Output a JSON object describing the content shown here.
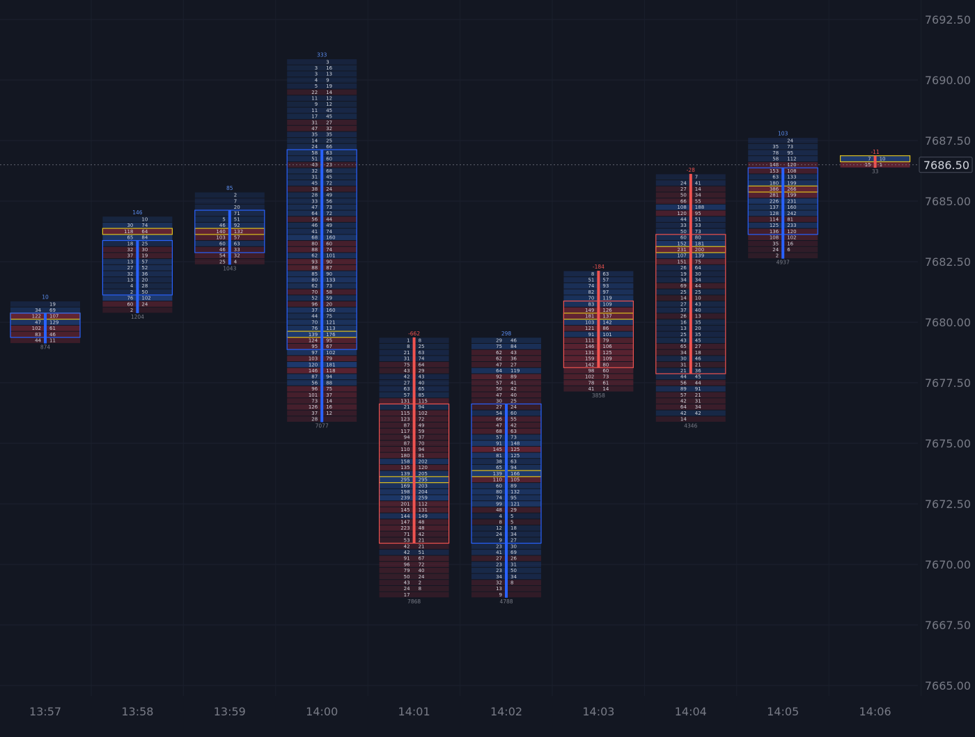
{
  "chart_data": {
    "type": "footprint",
    "price_axis": {
      "min": 7664.5,
      "max": 7693.5,
      "tick_step": 2.5,
      "ticks": [
        "7692.50",
        "7690.00",
        "7687.50",
        "7685.00",
        "7682.50",
        "7680.00",
        "7677.50",
        "7675.00",
        "7672.50",
        "7670.00",
        "7667.50",
        "7665.00"
      ],
      "tick_size": 0.25
    },
    "time_axis": [
      "13:57",
      "13:58",
      "13:59",
      "14:00",
      "14:01",
      "14:02",
      "14:03",
      "14:04",
      "14:05",
      "14:06"
    ],
    "last_price": "7686.50",
    "colors": {
      "background": "#131722",
      "bid": "#ef5350",
      "ask": "#2962ff",
      "poc": "#e0c21e",
      "text": "#d1d4dc",
      "axis": "#787b86",
      "last_price_line": "#787b86"
    },
    "candles": [
      {
        "time": "13:57",
        "top": 7680.75,
        "delta": "10",
        "delta_dir": "up",
        "volume": "874",
        "rows": [
          [
            "",
            "19"
          ],
          [
            "34",
            "69"
          ],
          [
            "122",
            "107"
          ],
          [
            "47",
            "129"
          ],
          [
            "102",
            "61"
          ],
          [
            "83",
            "46"
          ],
          [
            "44",
            "11"
          ]
        ]
      },
      {
        "time": "13:58",
        "top": 7684.25,
        "delta": "146",
        "delta_dir": "up",
        "volume": "1204",
        "rows": [
          [
            "",
            "10"
          ],
          [
            "30",
            "74"
          ],
          [
            "118",
            "64"
          ],
          [
            "65",
            "84"
          ],
          [
            "18",
            "25"
          ],
          [
            "32",
            "30"
          ],
          [
            "37",
            "19"
          ],
          [
            "13",
            "57"
          ],
          [
            "27",
            "52"
          ],
          [
            "32",
            "36"
          ],
          [
            "13",
            "20"
          ],
          [
            "4",
            "28"
          ],
          [
            "2",
            "50"
          ],
          [
            "76",
            "102"
          ],
          [
            "60",
            "24"
          ],
          [
            "2",
            ""
          ]
        ]
      },
      {
        "time": "13:59",
        "top": 7685.25,
        "delta": "85",
        "delta_dir": "up",
        "volume": "1043",
        "rows": [
          [
            "",
            "2"
          ],
          [
            "",
            "7"
          ],
          [
            "",
            "20"
          ],
          [
            "",
            "71"
          ],
          [
            "5",
            "51"
          ],
          [
            "46",
            "92"
          ],
          [
            "140",
            "132"
          ],
          [
            "103",
            "57"
          ],
          [
            "60",
            "63"
          ],
          [
            "46",
            "33"
          ],
          [
            "54",
            "32"
          ],
          [
            "25",
            "4"
          ]
        ]
      },
      {
        "time": "14:00",
        "top": 7690.75,
        "delta": "333",
        "delta_dir": "up",
        "volume": "7077",
        "rows": [
          [
            "",
            "3"
          ],
          [
            "3",
            "16"
          ],
          [
            "3",
            "13"
          ],
          [
            "4",
            "9"
          ],
          [
            "5",
            "19"
          ],
          [
            "22",
            "14"
          ],
          [
            "11",
            "12"
          ],
          [
            "9",
            "12"
          ],
          [
            "11",
            "45"
          ],
          [
            "17",
            "45"
          ],
          [
            "31",
            "27"
          ],
          [
            "47",
            "32"
          ],
          [
            "35",
            "35"
          ],
          [
            "14",
            "25"
          ],
          [
            "24",
            "66"
          ],
          [
            "58",
            "63"
          ],
          [
            "51",
            "60"
          ],
          [
            "43",
            "23"
          ],
          [
            "32",
            "68"
          ],
          [
            "31",
            "45"
          ],
          [
            "45",
            "72"
          ],
          [
            "38",
            "24"
          ],
          [
            "28",
            "49"
          ],
          [
            "33",
            "56"
          ],
          [
            "47",
            "73"
          ],
          [
            "64",
            "72"
          ],
          [
            "56",
            "44"
          ],
          [
            "46",
            "49"
          ],
          [
            "41",
            "74"
          ],
          [
            "68",
            "160"
          ],
          [
            "80",
            "60"
          ],
          [
            "88",
            "74"
          ],
          [
            "62",
            "101"
          ],
          [
            "93",
            "90"
          ],
          [
            "88",
            "87"
          ],
          [
            "85",
            "90"
          ],
          [
            "80",
            "133"
          ],
          [
            "62",
            "73"
          ],
          [
            "70",
            "58"
          ],
          [
            "52",
            "59"
          ],
          [
            "96",
            "20"
          ],
          [
            "37",
            "160"
          ],
          [
            "44",
            "75"
          ],
          [
            "70",
            "121"
          ],
          [
            "76",
            "113"
          ],
          [
            "139",
            "176"
          ],
          [
            "124",
            "95"
          ],
          [
            "95",
            "67"
          ],
          [
            "97",
            "102"
          ],
          [
            "103",
            "79"
          ],
          [
            "120",
            "181"
          ],
          [
            "146",
            "118"
          ],
          [
            "87",
            "94"
          ],
          [
            "56",
            "88"
          ],
          [
            "96",
            "75"
          ],
          [
            "101",
            "37"
          ],
          [
            "73",
            "14"
          ],
          [
            "126",
            "16"
          ],
          [
            "37",
            "12"
          ],
          [
            "28",
            ""
          ]
        ]
      },
      {
        "time": "14:01",
        "top": 7679.25,
        "delta": "-662",
        "delta_dir": "down",
        "volume": "7868",
        "rows": [
          [
            "1",
            "8"
          ],
          [
            "8",
            "25"
          ],
          [
            "21",
            "63"
          ],
          [
            "31",
            "74"
          ],
          [
            "75",
            "64"
          ],
          [
            "43",
            "29"
          ],
          [
            "42",
            "43"
          ],
          [
            "27",
            "40"
          ],
          [
            "63",
            "65"
          ],
          [
            "57",
            "85"
          ],
          [
            "131",
            "115"
          ],
          [
            "21",
            "94"
          ],
          [
            "115",
            "102"
          ],
          [
            "123",
            "72"
          ],
          [
            "87",
            "49"
          ],
          [
            "117",
            "59"
          ],
          [
            "94",
            "37"
          ],
          [
            "87",
            "70"
          ],
          [
            "110",
            "94"
          ],
          [
            "180",
            "81"
          ],
          [
            "158",
            "202"
          ],
          [
            "135",
            "120"
          ],
          [
            "139",
            "205"
          ],
          [
            "295",
            "295"
          ],
          [
            "169",
            "203"
          ],
          [
            "198",
            "204"
          ],
          [
            "239",
            "259"
          ],
          [
            "201",
            "112"
          ],
          [
            "145",
            "131"
          ],
          [
            "144",
            "149"
          ],
          [
            "147",
            "48"
          ],
          [
            "223",
            "48"
          ],
          [
            "71",
            "42"
          ],
          [
            "53",
            "21"
          ],
          [
            "42",
            "21"
          ],
          [
            "42",
            "51"
          ],
          [
            "91",
            "67"
          ],
          [
            "96",
            "72"
          ],
          [
            "79",
            "40"
          ],
          [
            "50",
            "24"
          ],
          [
            "43",
            "2"
          ],
          [
            "24",
            "8"
          ],
          [
            "17",
            ""
          ]
        ]
      },
      {
        "time": "14:02",
        "top": 7679.25,
        "delta": "298",
        "delta_dir": "up",
        "volume": "4788",
        "rows": [
          [
            "29",
            "46"
          ],
          [
            "75",
            "84"
          ],
          [
            "62",
            "43"
          ],
          [
            "62",
            "36"
          ],
          [
            "47",
            "27"
          ],
          [
            "64",
            "119"
          ],
          [
            "92",
            "89"
          ],
          [
            "57",
            "41"
          ],
          [
            "50",
            "42"
          ],
          [
            "47",
            "40"
          ],
          [
            "30",
            "25"
          ],
          [
            "27",
            "24"
          ],
          [
            "54",
            "60"
          ],
          [
            "66",
            "55"
          ],
          [
            "47",
            "42"
          ],
          [
            "68",
            "63"
          ],
          [
            "57",
            "73"
          ],
          [
            "91",
            "148"
          ],
          [
            "145",
            "125"
          ],
          [
            "81",
            "125"
          ],
          [
            "38",
            "63"
          ],
          [
            "65",
            "94"
          ],
          [
            "139",
            "166"
          ],
          [
            "110",
            "105"
          ],
          [
            "60",
            "89"
          ],
          [
            "80",
            "132"
          ],
          [
            "74",
            "95"
          ],
          [
            "99",
            "121"
          ],
          [
            "48",
            "29"
          ],
          [
            "4",
            "5"
          ],
          [
            "8",
            "5"
          ],
          [
            "12",
            "18"
          ],
          [
            "24",
            "34"
          ],
          [
            "9",
            "27"
          ],
          [
            "23",
            "30"
          ],
          [
            "41",
            "69"
          ],
          [
            "27",
            "26"
          ],
          [
            "23",
            "31"
          ],
          [
            "23",
            "50"
          ],
          [
            "34",
            "34"
          ],
          [
            "32",
            "8"
          ],
          [
            "13",
            ""
          ],
          [
            "9",
            ""
          ]
        ]
      },
      {
        "time": "14:03",
        "top": 7682.0,
        "delta": "-184",
        "delta_dir": "down",
        "volume": "3858",
        "rows": [
          [
            "8",
            "63"
          ],
          [
            "51",
            "57"
          ],
          [
            "74",
            "93"
          ],
          [
            "82",
            "97"
          ],
          [
            "70",
            "119"
          ],
          [
            "83",
            "109"
          ],
          [
            "149",
            "126"
          ],
          [
            "181",
            "137"
          ],
          [
            "103",
            "142"
          ],
          [
            "121",
            "86"
          ],
          [
            "91",
            "101"
          ],
          [
            "111",
            "79"
          ],
          [
            "146",
            "106"
          ],
          [
            "131",
            "125"
          ],
          [
            "159",
            "109"
          ],
          [
            "142",
            "80"
          ],
          [
            "98",
            "60"
          ],
          [
            "102",
            "73"
          ],
          [
            "78",
            "61"
          ],
          [
            "41",
            "14"
          ]
        ]
      },
      {
        "time": "14:04",
        "top": 7686.0,
        "delta": "-28",
        "delta_dir": "down",
        "volume": "4346",
        "rows": [
          [
            "",
            "7"
          ],
          [
            "24",
            "41"
          ],
          [
            "27",
            "14"
          ],
          [
            "50",
            "34"
          ],
          [
            "66",
            "55"
          ],
          [
            "108",
            "188"
          ],
          [
            "120",
            "95"
          ],
          [
            "44",
            "51"
          ],
          [
            "33",
            "33"
          ],
          [
            "50",
            "73"
          ],
          [
            "60",
            "80"
          ],
          [
            "152",
            "181"
          ],
          [
            "231",
            "200"
          ],
          [
            "107",
            "139"
          ],
          [
            "151",
            "75"
          ],
          [
            "26",
            "64"
          ],
          [
            "19",
            "30"
          ],
          [
            "34",
            "34"
          ],
          [
            "69",
            "44"
          ],
          [
            "25",
            "25"
          ],
          [
            "14",
            "10"
          ],
          [
            "27",
            "43"
          ],
          [
            "37",
            "40"
          ],
          [
            "26",
            "13"
          ],
          [
            "16",
            "35"
          ],
          [
            "13",
            "20"
          ],
          [
            "25",
            "35"
          ],
          [
            "43",
            "45"
          ],
          [
            "65",
            "27"
          ],
          [
            "34",
            "18"
          ],
          [
            "30",
            "46"
          ],
          [
            "31",
            "21"
          ],
          [
            "21",
            "36"
          ],
          [
            "44",
            "45"
          ],
          [
            "56",
            "44"
          ],
          [
            "89",
            "91"
          ],
          [
            "57",
            "21"
          ],
          [
            "42",
            "31"
          ],
          [
            "64",
            "34"
          ],
          [
            "42",
            "42"
          ],
          [
            "14",
            ""
          ]
        ]
      },
      {
        "time": "14:05",
        "top": 7687.5,
        "delta": "103",
        "delta_dir": "up",
        "volume": "4937",
        "rows": [
          [
            "",
            "24"
          ],
          [
            "35",
            "73"
          ],
          [
            "78",
            "95"
          ],
          [
            "58",
            "112"
          ],
          [
            "148",
            "120"
          ],
          [
            "153",
            "108"
          ],
          [
            "63",
            "133"
          ],
          [
            "180",
            "199"
          ],
          [
            "386",
            "266"
          ],
          [
            "281",
            "199"
          ],
          [
            "226",
            "231"
          ],
          [
            "137",
            "160"
          ],
          [
            "128",
            "242"
          ],
          [
            "114",
            "81"
          ],
          [
            "125",
            "233"
          ],
          [
            "136",
            "120"
          ],
          [
            "108",
            "102"
          ],
          [
            "35",
            "16"
          ],
          [
            "24",
            "6"
          ],
          [
            "2",
            ""
          ]
        ]
      },
      {
        "time": "14:06",
        "top": 7686.75,
        "delta": "-11",
        "delta_dir": "down",
        "volume": "33",
        "rows": [
          [
            "7",
            "10"
          ],
          [
            "15",
            "1"
          ]
        ]
      }
    ]
  }
}
